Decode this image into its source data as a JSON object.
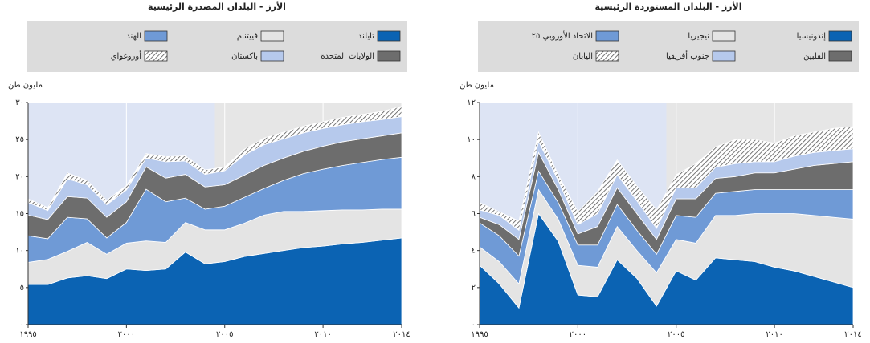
{
  "chart_data": [
    {
      "type": "stacked_area",
      "title": "الأرز - البلدان المصدرة الرئيسية",
      "ylabel": "مليون طن",
      "x": [
        1995,
        1996,
        1997,
        1998,
        1999,
        2000,
        2001,
        2002,
        2003,
        2004,
        2005,
        2006,
        2007,
        2008,
        2009,
        2010,
        2011,
        2012,
        2013,
        2014
      ],
      "xlim": [
        1995,
        2014
      ],
      "ylim": [
        0,
        30
      ],
      "xticks": [
        {
          "value": 1995,
          "label": "١٩٩٥"
        },
        {
          "value": 2000,
          "label": "٢٠٠٠"
        },
        {
          "value": 2005,
          "label": "٢٠٠٥"
        },
        {
          "value": 2010,
          "label": "٢٠١٠"
        },
        {
          "value": 2014,
          "label": "٢٠١٤"
        }
      ],
      "yticks": [
        {
          "value": 0,
          "label": "٠"
        },
        {
          "value": 5,
          "label": "٥"
        },
        {
          "value": 10,
          "label": "١٠"
        },
        {
          "value": 15,
          "label": "١٥"
        },
        {
          "value": 20,
          "label": "٢٠"
        },
        {
          "value": 25,
          "label": "٢٥"
        },
        {
          "value": 30,
          "label": "٣٠"
        }
      ],
      "shaded_until": 2004.5,
      "series": [
        {
          "name": "تايلند",
          "color": "#0b63b3",
          "values": [
            5.4,
            5.4,
            6.3,
            6.6,
            6.2,
            7.5,
            7.3,
            7.5,
            9.8,
            8.2,
            8.5,
            9.2,
            9.6,
            10.0,
            10.4,
            10.6,
            10.9,
            11.1,
            11.4,
            11.7
          ]
        },
        {
          "name": "فييتنام",
          "color": "#e4e4e4",
          "values": [
            3.0,
            3.4,
            3.6,
            4.5,
            3.3,
            3.5,
            4.0,
            3.6,
            4.0,
            4.6,
            4.3,
            4.5,
            5.2,
            5.3,
            4.9,
            4.8,
            4.6,
            4.4,
            4.2,
            3.9
          ]
        },
        {
          "name": "الهند",
          "color": "#6f9ad6",
          "values": [
            3.6,
            2.8,
            4.6,
            3.2,
            2.2,
            2.8,
            7.0,
            5.5,
            3.3,
            2.8,
            3.2,
            3.5,
            3.6,
            4.2,
            5.1,
            5.6,
            6.0,
            6.4,
            6.7,
            7.0
          ]
        },
        {
          "name": "الولايات المتحدة",
          "color": "#6d6d6d",
          "values": [
            2.8,
            2.6,
            2.8,
            2.8,
            2.8,
            2.8,
            3.0,
            3.2,
            3.2,
            3.0,
            2.9,
            3.0,
            3.1,
            3.0,
            3.0,
            3.1,
            3.2,
            3.2,
            3.2,
            3.3
          ]
        },
        {
          "name": "باكستان",
          "color": "#b6c9ec",
          "values": [
            1.7,
            1.2,
            2.4,
            1.8,
            1.7,
            1.6,
            1.2,
            2.2,
            1.8,
            1.7,
            1.9,
            2.7,
            2.8,
            2.6,
            2.5,
            2.4,
            2.3,
            2.3,
            2.2,
            2.2
          ]
        },
        {
          "name": "أوروغواي",
          "color": "hatch",
          "values": [
            0.5,
            0.4,
            0.8,
            0.6,
            0.6,
            0.6,
            0.6,
            0.7,
            0.7,
            0.6,
            0.5,
            0.8,
            0.9,
            0.9,
            0.9,
            0.9,
            1.0,
            1.0,
            1.1,
            1.4
          ]
        }
      ]
    },
    {
      "type": "stacked_area",
      "title": "الأرز - البلدان المستوردة الرئيسية",
      "ylabel": "مليون طن",
      "x": [
        1995,
        1996,
        1997,
        1998,
        1999,
        2000,
        2001,
        2002,
        2003,
        2004,
        2005,
        2006,
        2007,
        2008,
        2009,
        2010,
        2011,
        2012,
        2013,
        2014
      ],
      "xlim": [
        1995,
        2014
      ],
      "ylim": [
        0,
        12
      ],
      "xticks": [
        {
          "value": 1995,
          "label": "١٩٩٥"
        },
        {
          "value": 2000,
          "label": "٢٠٠٠"
        },
        {
          "value": 2005,
          "label": "٢٠٠٥"
        },
        {
          "value": 2010,
          "label": "٢٠١٠"
        },
        {
          "value": 2014,
          "label": "٢٠١٤"
        }
      ],
      "yticks": [
        {
          "value": 0,
          "label": "٠"
        },
        {
          "value": 2,
          "label": "٢"
        },
        {
          "value": 4,
          "label": "٤"
        },
        {
          "value": 6,
          "label": "٦"
        },
        {
          "value": 8,
          "label": "٨"
        },
        {
          "value": 10,
          "label": "١٠"
        },
        {
          "value": 12,
          "label": "١٢"
        }
      ],
      "shaded_until": 2004.5,
      "series": [
        {
          "name": "إندونيسيا",
          "color": "#0b63b3",
          "values": [
            3.2,
            2.2,
            0.9,
            6.0,
            4.5,
            1.6,
            1.5,
            3.5,
            2.5,
            1.0,
            2.9,
            2.4,
            3.6,
            3.5,
            3.4,
            3.1,
            2.9,
            2.6,
            2.3,
            2.0
          ]
        },
        {
          "name": "نيجيريا",
          "color": "#e4e4e4",
          "values": [
            1.0,
            1.2,
            1.3,
            1.3,
            1.2,
            1.6,
            1.6,
            1.8,
            1.5,
            1.8,
            1.7,
            2.0,
            2.3,
            2.4,
            2.6,
            2.9,
            3.1,
            3.3,
            3.5,
            3.7
          ]
        },
        {
          "name": "الاتحاد الأوروبي ٢٥",
          "color": "#6f9ad6",
          "values": [
            1.3,
            1.4,
            1.5,
            1.0,
            0.9,
            1.1,
            1.2,
            1.2,
            1.1,
            1.0,
            1.3,
            1.4,
            1.2,
            1.3,
            1.3,
            1.3,
            1.3,
            1.4,
            1.5,
            1.6
          ]
        },
        {
          "name": "الفلبين",
          "color": "#6d6d6d",
          "values": [
            0.3,
            0.6,
            0.9,
            1.0,
            0.7,
            0.6,
            1.0,
            0.9,
            0.9,
            0.8,
            0.9,
            1.0,
            0.8,
            0.8,
            0.9,
            0.9,
            1.1,
            1.3,
            1.4,
            1.5
          ]
        },
        {
          "name": "جنوب أفريقيا",
          "color": "#b6c9ec",
          "values": [
            0.4,
            0.5,
            0.5,
            0.6,
            0.5,
            0.5,
            0.7,
            0.7,
            0.7,
            0.6,
            0.6,
            0.6,
            0.6,
            0.7,
            0.6,
            0.6,
            0.7,
            0.7,
            0.7,
            0.7
          ]
        },
        {
          "name": "اليابان",
          "color": "hatch",
          "values": [
            0.4,
            0.2,
            0.5,
            0.5,
            0.3,
            0.7,
            1.2,
            0.8,
            0.8,
            1.0,
            0.7,
            1.3,
            1.1,
            1.3,
            1.2,
            1.0,
            1.1,
            1.1,
            1.2,
            1.2
          ]
        }
      ]
    }
  ]
}
